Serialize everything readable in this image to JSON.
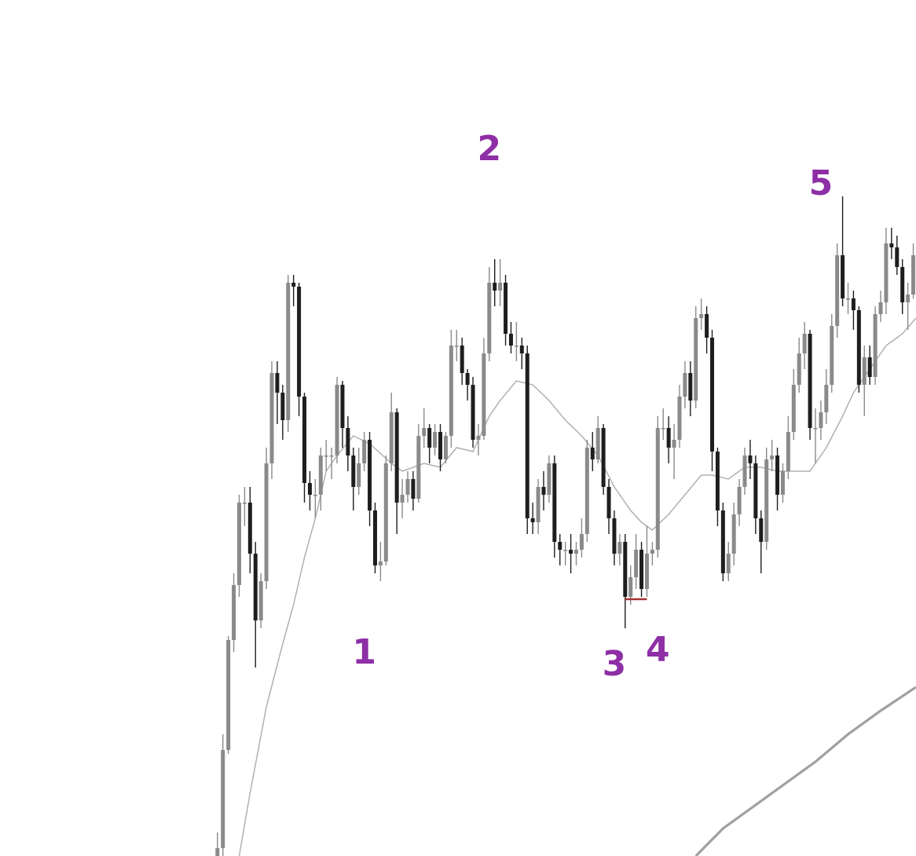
{
  "chart_data": {
    "type": "candlestick",
    "xlim": [
      -40,
      128.5
    ],
    "ylim": [
      0,
      109
    ],
    "up_color": "#8a8a8a",
    "down_color": "#1e1e1e",
    "x": [
      0,
      1,
      2,
      3,
      4,
      5,
      6,
      7,
      8,
      9,
      10,
      11,
      12,
      13,
      14,
      15,
      16,
      17,
      18,
      19,
      20,
      21,
      22,
      23,
      24,
      25,
      26,
      27,
      28,
      29,
      30,
      31,
      32,
      33,
      34,
      35,
      36,
      37,
      38,
      39,
      40,
      41,
      42,
      43,
      44,
      45,
      46,
      47,
      48,
      49,
      50,
      51,
      52,
      53,
      54,
      55,
      56,
      57,
      58,
      59,
      60,
      61,
      62,
      63,
      64,
      65,
      66,
      67,
      68,
      69,
      70,
      71,
      72,
      73,
      74,
      75,
      76,
      77,
      78,
      79,
      80,
      81,
      82,
      83,
      84,
      85,
      86,
      87,
      88,
      89,
      90,
      91,
      92,
      93,
      94,
      95,
      96,
      97,
      98,
      99,
      100,
      101,
      102,
      103,
      104,
      105,
      106,
      107,
      108,
      109,
      110,
      111,
      112,
      113,
      114,
      115,
      116,
      117,
      118,
      119,
      120,
      121,
      122,
      123,
      124,
      125,
      126,
      127,
      128
    ],
    "open": [
      0,
      1,
      13.5,
      27.5,
      34.5,
      45,
      45,
      38.5,
      30,
      35,
      50,
      61.5,
      59,
      55.5,
      73,
      72.5,
      58.5,
      47.5,
      46,
      46,
      51,
      51,
      51,
      60,
      54.5,
      51,
      47,
      50,
      53,
      44,
      37,
      37.5,
      50,
      56.5,
      45,
      46,
      48,
      45.5,
      53.5,
      54.5,
      52,
      54,
      50.5,
      53.5,
      65,
      65,
      61.5,
      60,
      53,
      53.5,
      64,
      73,
      72,
      73,
      66.5,
      65,
      65,
      64,
      43,
      42.5,
      47,
      46,
      50,
      40,
      39,
      39,
      38.5,
      39,
      41,
      52,
      50.5,
      54.5,
      47,
      43,
      38.5,
      40,
      33,
      35.5,
      39,
      34,
      38.5,
      39,
      54.5,
      54.5,
      52,
      53,
      58.5,
      61.5,
      58,
      68.5,
      69,
      66,
      51.5,
      44,
      36,
      38.5,
      43.5,
      47,
      51,
      50,
      43,
      40,
      50.5,
      51,
      46,
      49,
      54,
      60,
      64,
      66.5,
      54.5,
      54.5,
      56.5,
      60,
      67.5,
      76.5,
      71,
      71,
      69.5,
      60,
      63.5,
      61,
      69,
      70.5,
      78,
      77.5,
      75,
      70.5,
      71.5
    ],
    "high": [
      3,
      15.5,
      28,
      36,
      46,
      47,
      47,
      40,
      36,
      52,
      63,
      63,
      60,
      74,
      74,
      73,
      59,
      49,
      48,
      52,
      53,
      52,
      61,
      60.5,
      56,
      52,
      52,
      54,
      54,
      45,
      40,
      51,
      59,
      57,
      48,
      49,
      49,
      55,
      57,
      55,
      55,
      55,
      54,
      67,
      67,
      66,
      62,
      61,
      55,
      66,
      75,
      76,
      76,
      74,
      68,
      68,
      66,
      65,
      45,
      48,
      49,
      51,
      51,
      41,
      40,
      41,
      40,
      43,
      53,
      54,
      56,
      55,
      48,
      44,
      41,
      41,
      37,
      41,
      40,
      42,
      40,
      56,
      57,
      56,
      55,
      60,
      63,
      63,
      70,
      71,
      70,
      67,
      52,
      45,
      40,
      45,
      48,
      52,
      53,
      51,
      44,
      52,
      53,
      52,
      50,
      56,
      62,
      66,
      68,
      67,
      57,
      58,
      62,
      69,
      78,
      84,
      73,
      72,
      70,
      65,
      65,
      70,
      72,
      80,
      80,
      79,
      76,
      73,
      78
    ],
    "low": [
      0,
      0,
      13,
      26,
      33,
      42,
      36,
      24,
      29,
      34,
      48,
      55,
      53,
      54,
      70,
      56,
      45,
      44,
      43,
      44,
      49,
      48,
      50,
      52,
      49,
      44,
      46,
      49,
      42,
      36,
      35,
      37,
      49,
      41,
      43,
      45,
      44,
      45,
      52,
      50,
      51,
      49,
      50,
      52,
      63,
      60,
      58,
      52,
      51,
      53,
      63,
      70,
      70,
      65,
      64,
      63,
      62,
      41,
      41,
      41,
      44,
      45,
      38,
      37,
      37,
      36,
      37,
      38,
      40,
      49,
      50,
      46,
      41,
      37,
      37,
      29,
      32,
      34,
      33,
      33,
      37,
      38,
      53,
      50,
      48,
      52,
      57,
      56,
      57,
      67,
      64,
      49,
      42,
      35,
      35,
      37,
      42,
      46,
      48,
      41,
      36,
      39,
      49,
      44,
      45,
      48,
      53,
      59,
      62,
      53,
      50,
      53,
      55,
      59,
      66,
      70,
      69,
      67,
      59,
      56,
      60,
      60,
      68,
      69,
      76,
      74,
      69,
      67,
      71
    ],
    "close": [
      1,
      13.5,
      27.5,
      34.5,
      45,
      45,
      38.5,
      30,
      35,
      50,
      61.5,
      59,
      55.5,
      73,
      72.5,
      58.5,
      47.5,
      46,
      46,
      51,
      51,
      51,
      60,
      54.5,
      51,
      47,
      50,
      53,
      44,
      37,
      37.5,
      50,
      56.5,
      45,
      46,
      48,
      45.5,
      53.5,
      54.5,
      52,
      54,
      50.5,
      53.5,
      65,
      65,
      61.5,
      60,
      53,
      53.5,
      64,
      73,
      72,
      73,
      66.5,
      65,
      65,
      64,
      43,
      42.5,
      47,
      46,
      50,
      40,
      39,
      39,
      38.5,
      39,
      41,
      52,
      50.5,
      54.5,
      47,
      43,
      38.5,
      40,
      33,
      35.5,
      39,
      34,
      38.5,
      39,
      54.5,
      54.5,
      52,
      53,
      58.5,
      61.5,
      58,
      68.5,
      69,
      66,
      51.5,
      44,
      36,
      38.5,
      43.5,
      47,
      51,
      50,
      43,
      40,
      50.5,
      51,
      46,
      49,
      54,
      60,
      64,
      66.5,
      54.5,
      54.5,
      56.5,
      60,
      67.5,
      76.5,
      71,
      71,
      69.5,
      60,
      63.5,
      61,
      69,
      70.5,
      78,
      77.5,
      75,
      70.5,
      71.5,
      76.5
    ],
    "overlays": [
      {
        "color": "#b0b0b0",
        "x": [
          4,
          6,
          9,
          12,
          14,
          16,
          18,
          20,
          22,
          25,
          28,
          32,
          34,
          38,
          41,
          44,
          47,
          50,
          52,
          55,
          58,
          61,
          64,
          67,
          70,
          73,
          76,
          78,
          80,
          83,
          86,
          89,
          91,
          94,
          97,
          100,
          103,
          106,
          109,
          112,
          115,
          117,
          120,
          123,
          126,
          128.5
        ],
        "values": [
          0,
          8,
          19,
          27,
          32,
          38,
          43,
          49,
          51,
          53.5,
          52.5,
          50,
          49,
          50,
          49.5,
          52,
          51.5,
          56,
          58,
          60.5,
          60,
          58,
          55.5,
          53.5,
          51,
          47,
          44,
          42.5,
          41.5,
          43.5,
          46,
          48.5,
          48.5,
          48,
          49.5,
          49.5,
          49,
          49,
          49,
          52,
          56,
          59,
          62,
          65,
          66.5,
          68.5
        ]
      },
      {
        "color": "#a0a0a0",
        "x": [
          88,
          93,
          99,
          104,
          110,
          116,
          122,
          128.5
        ],
        "values": [
          0,
          3.5,
          6.5,
          9,
          12,
          15.5,
          18.5,
          21.5
        ]
      }
    ],
    "levels": [
      {
        "value": 32.7,
        "x": [
          75,
          79
        ],
        "color": "#a83232"
      }
    ],
    "annotations": [
      {
        "text": "1",
        "x": 27,
        "y": 25.7,
        "color": "#8e2fa6"
      },
      {
        "text": "2",
        "x": 50,
        "y": 89.8,
        "color": "#8e2fa6"
      },
      {
        "text": "3",
        "x": 73,
        "y": 24.2,
        "color": "#8e2fa6"
      },
      {
        "text": "4",
        "x": 81,
        "y": 26,
        "color": "#8e2fa6"
      },
      {
        "text": "5",
        "x": 111,
        "y": 85.4,
        "color": "#8e2fa6"
      }
    ]
  }
}
